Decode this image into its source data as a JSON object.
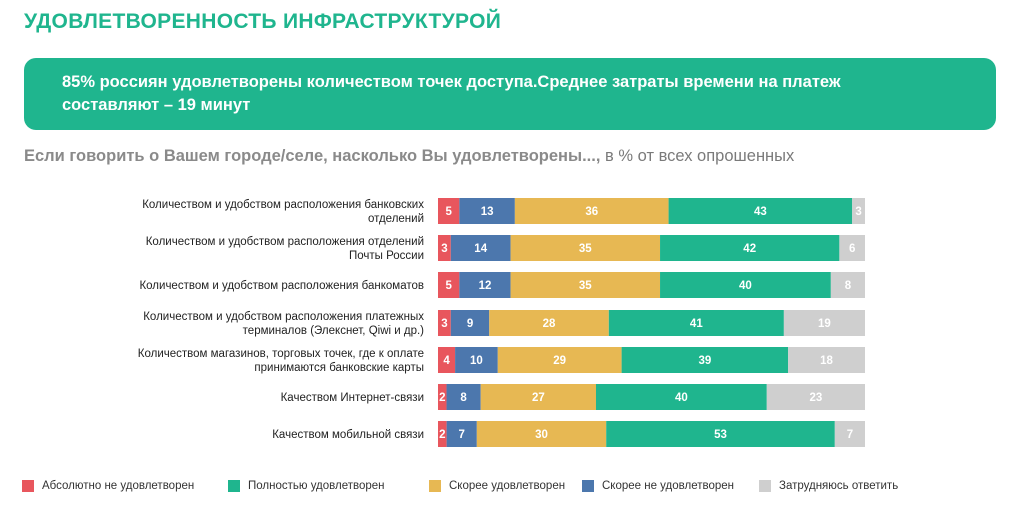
{
  "header": {
    "title": "УДОВЛЕТВОРЕННОСТЬ ИНФРАСТРУКТУРОЙ",
    "banner_line1": "85% россиян удовлетворены  количеством точек доступа.Среднее затраты времени на платеж",
    "banner_line2": "составляют   – 19 минут",
    "question": "Если говорить о Вашем городе/селе, насколько Вы удовлетворены...,",
    "question_suffix": " в % от всех опрошенных"
  },
  "colors": {
    "accent": "#1fb58e",
    "absolutely_not": "#e8565d",
    "rather_not": "#4c77ad",
    "rather_yes": "#e7b853",
    "fully": "#1fb58e",
    "hard_to_say": "#cfcfcf"
  },
  "chart_data": {
    "type": "bar",
    "orientation": "horizontal",
    "stacked": true,
    "unit": "%",
    "categories": [
      [
        "Количеством и удобством расположения банковских",
        "отделений"
      ],
      [
        "Количеством и удобством расположения отделений",
        "Почты России"
      ],
      [
        "Количеством и удобством расположения банкоматов"
      ],
      [
        "Количеством и удобством расположения платежных",
        "терминалов (Элекснет, Qiwi и др.)"
      ],
      [
        "Количеством магазинов, торговых точек, где к оплате",
        "принимаются банковские карты"
      ],
      [
        "Качеством Интернет-связи"
      ],
      [
        "Качеством мобильной связи"
      ]
    ],
    "series": [
      {
        "name": "Абсолютно не удовлетворен",
        "color": "#e8565d",
        "values": [
          5,
          3,
          5,
          3,
          4,
          2,
          2
        ]
      },
      {
        "name": "Скорее не удовлетворен",
        "color": "#4c77ad",
        "values": [
          13,
          14,
          12,
          9,
          10,
          8,
          7
        ]
      },
      {
        "name": "Скорее удовлетворен",
        "color": "#e7b853",
        "values": [
          36,
          35,
          35,
          28,
          29,
          27,
          30
        ]
      },
      {
        "name": "Полностью удовлетворен",
        "color": "#1fb58e",
        "values": [
          43,
          42,
          40,
          41,
          39,
          40,
          53
        ]
      },
      {
        "name": "Затрудняюсь ответить",
        "color": "#cfcfcf",
        "values": [
          3,
          6,
          8,
          19,
          18,
          23,
          7
        ]
      }
    ],
    "legend_order": [
      "Абсолютно не удовлетворен",
      "Полностью удовлетворен",
      "Скорее удовлетворен",
      "Скорее не удовлетворен",
      "Затрудняюсь ответить"
    ],
    "legend_position": "bottom",
    "grid": false
  }
}
